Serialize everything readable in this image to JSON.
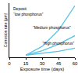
{
  "chart_data": {
    "type": "line",
    "x_label": "Exposure time (days)",
    "y_label": "Corrosion rate (µm)",
    "x": [
      15,
      30,
      45,
      60
    ],
    "series": [
      {
        "name": "Deposit “low phosphorus”",
        "color": "#5bc3e6",
        "values": [
          4,
          20,
          50,
          95
        ]
      },
      {
        "name": "“Medium phosphorus”",
        "color": "#5bc3e6",
        "values": [
          4,
          12,
          24,
          40
        ]
      },
      {
        "name": "“High phosphorus”",
        "color": "#5bc3e6",
        "values": [
          4,
          7,
          11,
          17
        ]
      }
    ],
    "xlim": [
      0,
      60
    ],
    "xticks": [
      0,
      15,
      30,
      45,
      60
    ],
    "ylim": [
      0,
      100
    ],
    "tick_labels": "x",
    "grid": false
  }
}
